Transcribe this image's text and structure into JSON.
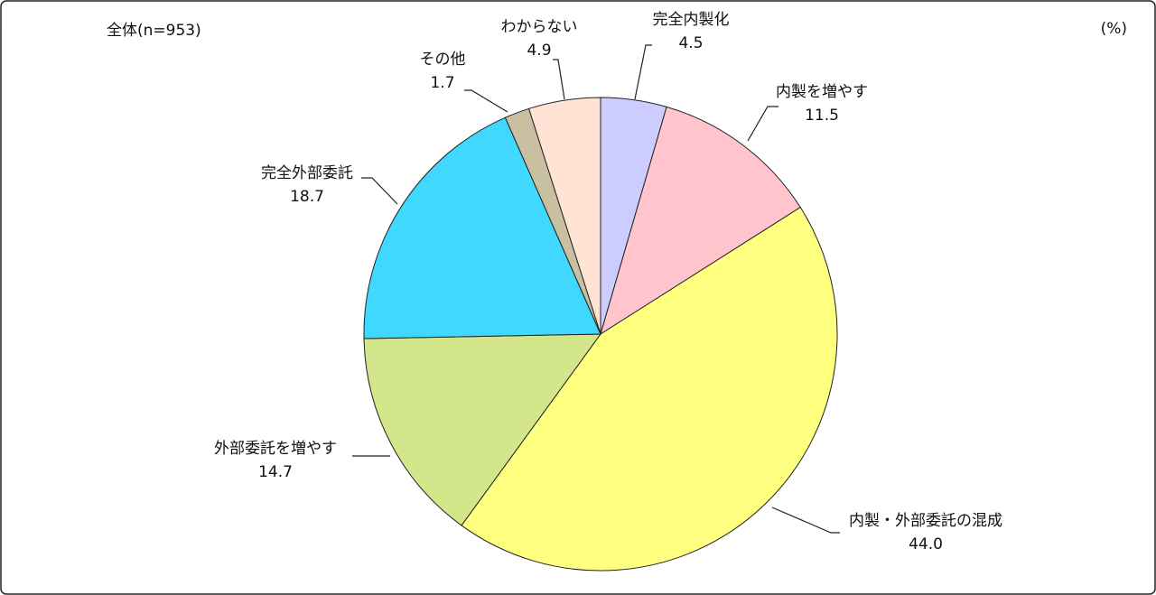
{
  "chart_data": {
    "type": "pie",
    "subtitle": "全体(n=953)",
    "unit": "(%)",
    "categories": [
      "完全内製化",
      "内製を増やす",
      "内製・外部委託の混成",
      "外部委託を増やす",
      "完全外部委託",
      "その他",
      "わからない"
    ],
    "values": [
      4.5,
      11.5,
      44.0,
      14.7,
      18.7,
      1.7,
      4.9
    ],
    "value_labels": [
      "4.5",
      "11.5",
      "44.0",
      "14.7",
      "18.7",
      "1.7",
      "4.9"
    ],
    "colors": [
      "#ccccff",
      "#ffc4cc",
      "#ffff80",
      "#d4e68a",
      "#40d8ff",
      "#c8c0a0",
      "#ffe4d6"
    ]
  }
}
